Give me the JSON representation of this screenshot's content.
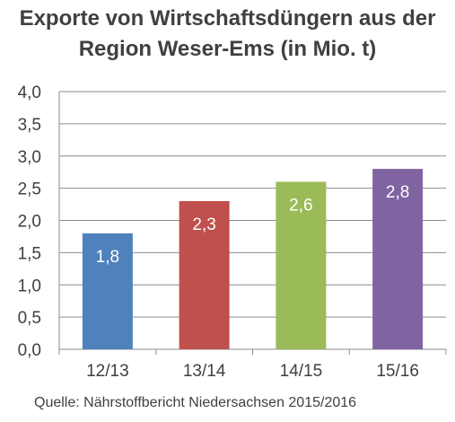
{
  "title_lines": [
    "Exporte von Wirtschaftsdüngern aus der",
    "Region Weser-Ems (in Mio. t)"
  ],
  "source": "Quelle: Nährstoffbericht Niedersachsen 2015/2016",
  "chart_data": {
    "type": "bar",
    "title": "Exporte von Wirtschaftsdüngern aus der Region Weser-Ems (in Mio. t)",
    "categories": [
      "12/13",
      "13/14",
      "14/15",
      "15/16"
    ],
    "values": [
      1.8,
      2.3,
      2.6,
      2.8
    ],
    "value_labels": [
      "1,8",
      "2,3",
      "2,6",
      "2,8"
    ],
    "bar_colors": [
      "#4f81bd",
      "#c0504d",
      "#9bbb59",
      "#8064a2"
    ],
    "y_ticks": [
      "0,0",
      "0,5",
      "1,0",
      "1,5",
      "2,0",
      "2,5",
      "3,0",
      "3,5",
      "4,0"
    ],
    "ylim": [
      0,
      4
    ],
    "ystep": 0.5,
    "grid": true,
    "legend": "none",
    "xlabel": "",
    "ylabel": ""
  }
}
